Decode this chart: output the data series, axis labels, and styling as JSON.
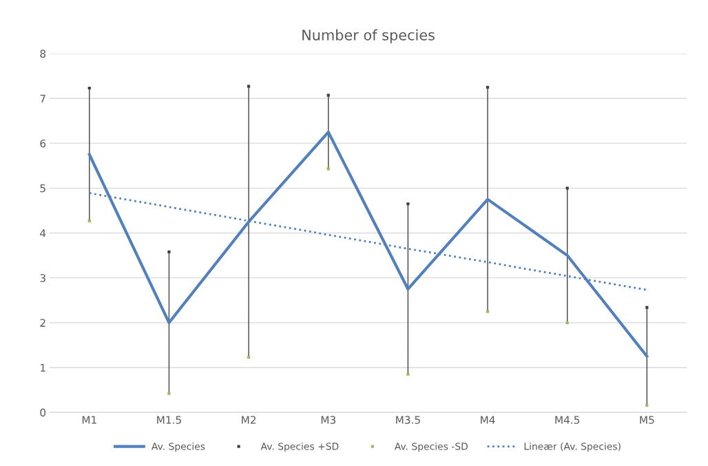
{
  "chart_data": {
    "type": "line",
    "title": "Number of species",
    "categories": [
      "M1",
      "M1.5",
      "M2",
      "M3",
      "M3.5",
      "M4",
      "M4.5",
      "M5"
    ],
    "series": [
      {
        "name": "Av. Species",
        "color": "#5080c0",
        "values": [
          5.75,
          2.0,
          4.25,
          6.25,
          2.75,
          4.75,
          3.5,
          1.25
        ],
        "marker": "none",
        "line_style": "solid"
      },
      {
        "name": "Av. Species +SD",
        "type": "scatter",
        "color": "#404040",
        "values": [
          7.23,
          3.58,
          7.27,
          7.07,
          4.65,
          7.25,
          5.0,
          2.34
        ],
        "marker": "square"
      },
      {
        "name": "Av. Species -SD",
        "type": "scatter",
        "color": "#9bbb59",
        "values": [
          4.27,
          0.42,
          1.23,
          5.43,
          0.85,
          2.25,
          2.0,
          0.16
        ],
        "marker": "square"
      },
      {
        "name": "Lineær (Av. Species)",
        "type": "line",
        "color": "#5080c0",
        "values": [
          4.89,
          4.58,
          4.27,
          3.96,
          3.65,
          3.35,
          3.04,
          2.73
        ],
        "marker": "none",
        "line_style": "dotted"
      }
    ],
    "ylim": [
      0,
      8
    ],
    "yticks": [
      0,
      1,
      2,
      3,
      4,
      5,
      6,
      7,
      8
    ],
    "grid": "y",
    "legend": "bottom"
  }
}
